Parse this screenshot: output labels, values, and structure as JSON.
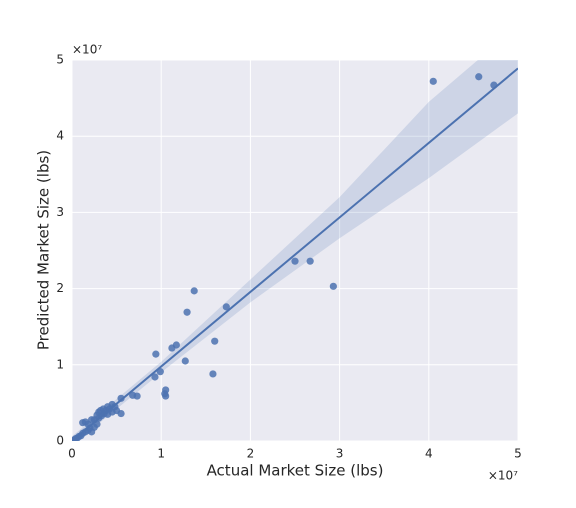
{
  "chart_data": {
    "type": "scatter",
    "xlabel": "Actual Market Size (lbs)",
    "ylabel": "Predicted Market Size (lbs)",
    "x_offset_label": "×10⁷",
    "y_offset_label": "×10⁷",
    "xlim": [
      0,
      5
    ],
    "ylim": [
      0,
      5
    ],
    "xticks": [
      0,
      1,
      2,
      3,
      4,
      5
    ],
    "yticks": [
      0,
      1,
      2,
      3,
      4,
      5
    ],
    "grid": true,
    "series": [
      {
        "color": "#4c72b0",
        "x": [
          4.05,
          4.56,
          4.73,
          2.5,
          2.67,
          2.93,
          1.37,
          1.73,
          1.29,
          0.94,
          1.12,
          1.17,
          1.27,
          1.6,
          1.58,
          0.93,
          0.99,
          1.05,
          1.05,
          1.04,
          0.55,
          0.68,
          0.73,
          0.02,
          0.04,
          0.06,
          0.08,
          0.1,
          0.12,
          0.15,
          0.18,
          0.2,
          0.22,
          0.25,
          0.28,
          0.12,
          0.15,
          0.18,
          0.25,
          0.3,
          0.33,
          0.36,
          0.38,
          0.4,
          0.42,
          0.45,
          0.48,
          0.5,
          0.3,
          0.35,
          0.4,
          0.45,
          0.55,
          0.28,
          0.32,
          0.22
        ],
        "values": [
          4.72,
          4.78,
          4.67,
          2.36,
          2.36,
          2.03,
          1.97,
          1.76,
          1.69,
          1.14,
          1.22,
          1.26,
          1.05,
          1.31,
          0.88,
          0.84,
          0.91,
          0.67,
          0.59,
          0.62,
          0.56,
          0.6,
          0.59,
          0.01,
          0.03,
          0.04,
          0.06,
          0.07,
          0.1,
          0.12,
          0.14,
          0.17,
          0.12,
          0.18,
          0.22,
          0.24,
          0.25,
          0.22,
          0.28,
          0.3,
          0.33,
          0.36,
          0.4,
          0.35,
          0.42,
          0.38,
          0.45,
          0.4,
          0.38,
          0.42,
          0.45,
          0.48,
          0.36,
          0.34,
          0.4,
          0.28
        ]
      }
    ],
    "fit": {
      "color": "#4c72b0",
      "x": [
        0,
        5
      ],
      "values": [
        0,
        4.89
      ]
    },
    "band": {
      "x": [
        0,
        1,
        2,
        3,
        4,
        5
      ],
      "upper": [
        0.06,
        1.04,
        2.12,
        3.2,
        4.45,
        5.45
      ],
      "lower": [
        -0.06,
        0.9,
        1.82,
        2.66,
        3.45,
        4.3
      ]
    }
  }
}
